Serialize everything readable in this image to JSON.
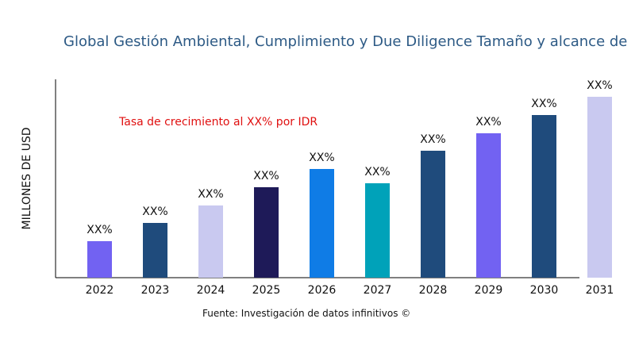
{
  "chart_data": {
    "type": "bar",
    "title": "Global Gestión Ambiental, Cumplimiento y Due Diligence Tamaño y alcance de",
    "ylabel": "MILLONES DE USD",
    "xlabel": "",
    "categories": [
      "2022",
      "2023",
      "2024",
      "2025",
      "2026",
      "2027",
      "2028",
      "2029",
      "2030",
      "2031"
    ],
    "values": [
      46,
      69,
      91,
      114,
      137,
      119,
      160,
      182,
      205,
      228
    ],
    "data_labels": [
      "XX%",
      "XX%",
      "XX%",
      "XX%",
      "XX%",
      "XX%",
      "XX%",
      "XX%",
      "XX%",
      "XX%"
    ],
    "colors": [
      "#7262f2",
      "#1f4b7c",
      "#c9c9f0",
      "#1e1a58",
      "#0f7ce6",
      "#00a2b9",
      "#1f4b7c",
      "#7262f2",
      "#1f4b7c",
      "#c9c9f0"
    ],
    "ylim": [
      0,
      250
    ],
    "grid": false,
    "annotation": "Tasa de crecimiento al XX% por IDR",
    "source": "Fuente: Investigación de datos infinitivos ©"
  }
}
